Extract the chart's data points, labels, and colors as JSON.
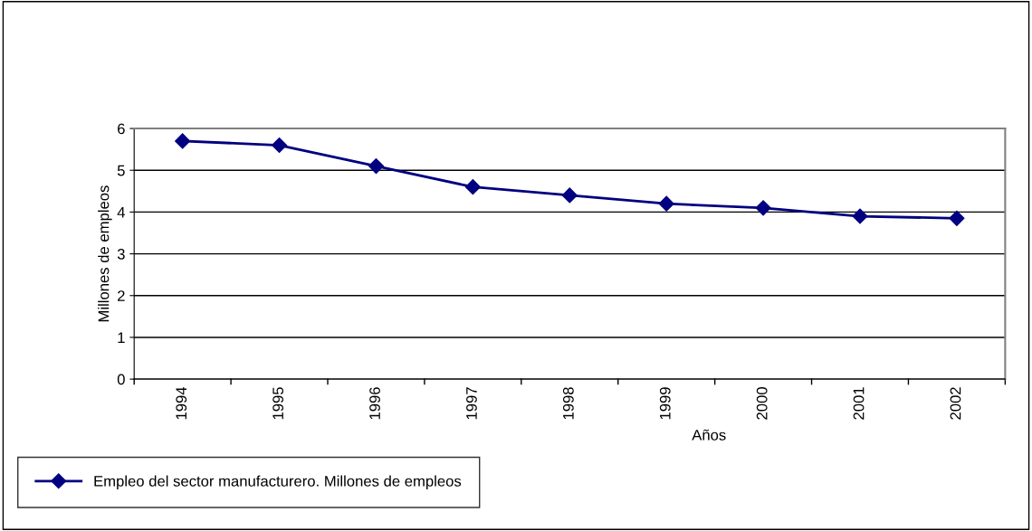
{
  "chart_data": {
    "type": "line",
    "xlabel": "Años",
    "ylabel": "Millones de empleos",
    "categories": [
      "1994",
      "1995",
      "1996",
      "1997",
      "1998",
      "1999",
      "2000",
      "2001",
      "2002"
    ],
    "series": [
      {
        "name": "Empleo del sector manufacturero. Millones de empleos",
        "color": "#000080",
        "values": [
          5.7,
          5.6,
          5.1,
          4.6,
          4.4,
          4.2,
          4.1,
          3.9,
          3.85
        ]
      }
    ],
    "ylim": [
      0,
      6
    ],
    "yticks": [
      0,
      1,
      2,
      3,
      4,
      5,
      6
    ],
    "grid": "y",
    "legend": "bottom left",
    "marker": "diamond",
    "line_style": "solid"
  }
}
